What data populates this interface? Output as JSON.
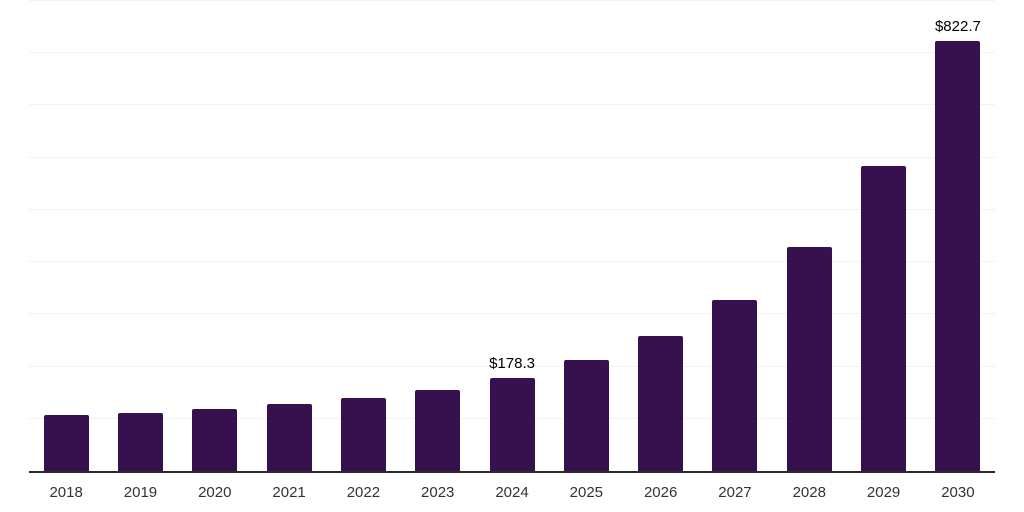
{
  "chart_data": {
    "type": "bar",
    "title": "",
    "xlabel": "",
    "ylabel": "",
    "categories": [
      "2018",
      "2019",
      "2020",
      "2021",
      "2022",
      "2023",
      "2024",
      "2025",
      "2026",
      "2027",
      "2028",
      "2029",
      "2030"
    ],
    "values": [
      106.5,
      111.3,
      119.0,
      128.7,
      140.5,
      155.7,
      178.3,
      212.4,
      258.6,
      327.1,
      428.6,
      583.9,
      822.7
    ],
    "value_labels": [
      "",
      "",
      "",
      "",
      "",
      "",
      "$178.3",
      "",
      "",
      "",
      "",
      "",
      "$822.7"
    ],
    "ylim": [
      0,
      900
    ],
    "gridline_interval": 100,
    "grid": true,
    "legend_position": "none",
    "y_axis_labels_visible": false,
    "colors": {
      "bar": "#36114E",
      "axis_line": "#2b2b2b",
      "gridline": "#f2f2f2",
      "tick_label": "#333333",
      "value_label": "#000000",
      "background": "#ffffff"
    }
  }
}
